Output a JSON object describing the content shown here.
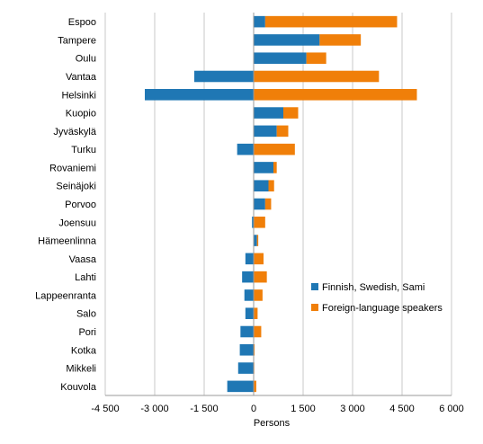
{
  "chart_data": {
    "type": "bar",
    "orientation": "horizontal",
    "stacked": true,
    "categories": [
      "Espoo",
      "Tampere",
      "Oulu",
      "Vantaa",
      "Helsinki",
      "Kuopio",
      "Jyväskylä",
      "Turku",
      "Rovaniemi",
      "Seinäjoki",
      "Porvoo",
      "Joensuu",
      "Hämeenlinna",
      "Vaasa",
      "Lahti",
      "Lappeenranta",
      "Salo",
      "Pori",
      "Kotka",
      "Mikkeli",
      "Kouvola"
    ],
    "series": [
      {
        "name": "Finnish, Swedish, Sami",
        "color": "#1f77b4",
        "values": [
          350,
          2000,
          1600,
          -1800,
          -3300,
          900,
          700,
          -500,
          600,
          450,
          350,
          -50,
          100,
          -250,
          -350,
          -280,
          -250,
          -400,
          -420,
          -470,
          -800
        ]
      },
      {
        "name": "Foreign-language speakers",
        "color": "#f07f09",
        "values": [
          4000,
          1250,
          600,
          3800,
          4950,
          450,
          350,
          1250,
          100,
          170,
          180,
          350,
          40,
          300,
          400,
          270,
          120,
          230,
          30,
          20,
          80
        ]
      }
    ],
    "xlabel": "Persons",
    "xlim": [
      -4500,
      6000
    ],
    "xticks": [
      -4500,
      -3000,
      -1500,
      0,
      1500,
      3000,
      4500,
      6000
    ],
    "xtick_labels": [
      "-4 500",
      "-3 000",
      "-1 500",
      "0",
      "1 500",
      "3 000",
      "4 500",
      "6 000"
    ],
    "grid": "vertical",
    "legend": "right-inside"
  }
}
